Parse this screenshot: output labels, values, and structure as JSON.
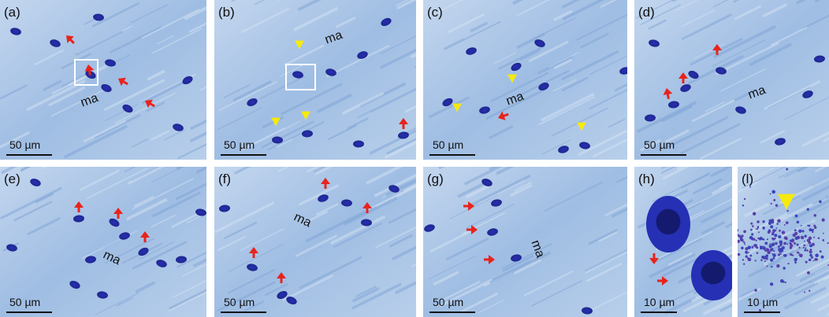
{
  "panels": [
    {
      "label": "(a)",
      "annotation": "ma",
      "scale": "50 µm"
    },
    {
      "label": "(b)",
      "annotation": "ma",
      "scale": "50 µm"
    },
    {
      "label": "(c)",
      "annotation": "ma",
      "scale": "50 µm"
    },
    {
      "label": "(d)",
      "annotation": "ma",
      "scale": "50 µm"
    },
    {
      "label": "(e)",
      "annotation": "ma",
      "scale": "50 µm"
    },
    {
      "label": "(f)",
      "annotation": "ma",
      "scale": "50 µm"
    },
    {
      "label": "(g)",
      "annotation": "ma",
      "scale": "50 µm"
    },
    {
      "label": "(h)",
      "scale": "10 µm"
    },
    {
      "label": "(l)",
      "scale": "10 µm"
    }
  ]
}
